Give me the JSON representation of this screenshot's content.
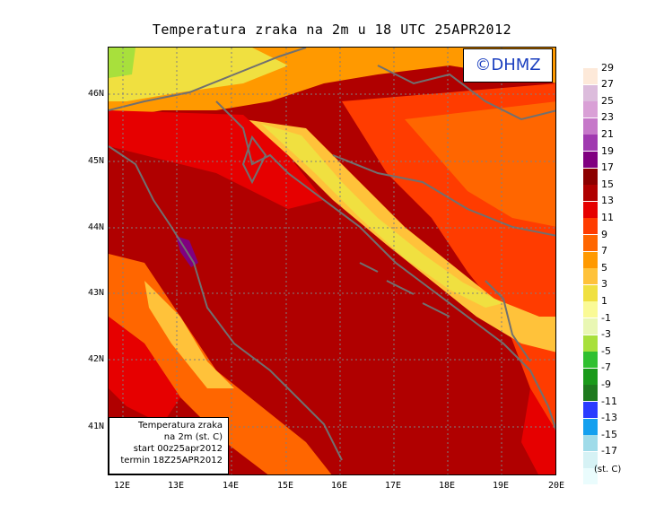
{
  "title": "Temperatura zraka na 2m u 18 UTC 25APR2012",
  "logo": "©DHMZ",
  "info_box": {
    "line1": "Temperatura zraka",
    "line2": "na 2m (st. C)",
    "line3": "start 00z25apr2012",
    "line4": "termin 18Z25APR2012"
  },
  "lat_labels": [
    "46N",
    "45N",
    "44N",
    "43N",
    "42N",
    "41N"
  ],
  "lon_labels": [
    "12E",
    "13E",
    "14E",
    "15E",
    "16E",
    "17E",
    "18E",
    "19E",
    "20E"
  ],
  "colorbar": {
    "unit": "(st. C)",
    "labels": [
      "29",
      "27",
      "25",
      "23",
      "21",
      "19",
      "17",
      "15",
      "13",
      "11",
      "9",
      "7",
      "5",
      "3",
      "1",
      "-1",
      "-3",
      "-5",
      "-7",
      "-9",
      "-11",
      "-13",
      "-15",
      "-17"
    ],
    "colors": [
      "#fde9d9",
      "#dcbcdc",
      "#d9a0d6",
      "#c678c9",
      "#a03ab0",
      "#800080",
      "#8c0000",
      "#b00000",
      "#e60000",
      "#ff3c00",
      "#ff6600",
      "#ff9900",
      "#ffc23a",
      "#f0e040",
      "#fafa96",
      "#e9f7b4",
      "#a8e03c",
      "#30c030",
      "#1a9a1a",
      "#1e7a1e",
      "#2a3cff",
      "#14a0ef",
      "#9fdbe9",
      "#d6f2f5",
      "#eafcfd"
    ]
  }
}
